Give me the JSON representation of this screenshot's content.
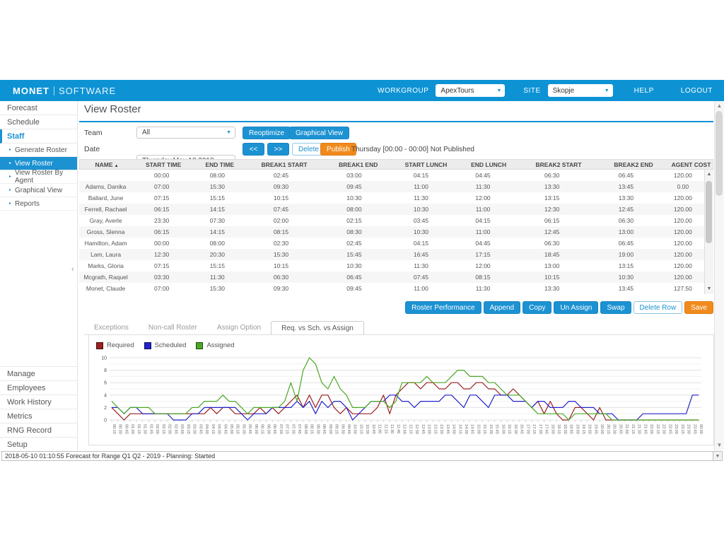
{
  "colors": {
    "brand_blue": "#0d93d4",
    "button_blue": "#1c92d2",
    "accent_orange": "#f18a1d",
    "required_line": "#9b2020",
    "scheduled_line": "#2323cc",
    "assigned_line": "#4aa823"
  },
  "header": {
    "logo_primary": "MONET",
    "logo_secondary": "SOFTWARE",
    "workgroup_label": "WORKGROUP",
    "workgroup_value": "ApexTours",
    "site_label": "SITE",
    "site_value": "Skopje",
    "help_label": "HELP",
    "logout_label": "LOGOUT"
  },
  "sidebar": {
    "items": [
      {
        "label": "Forecast",
        "type": "top",
        "group": "upper"
      },
      {
        "label": "Schedule",
        "type": "top",
        "group": "upper"
      },
      {
        "label": "Staff",
        "type": "section",
        "group": "upper"
      },
      {
        "label": "Generate Roster",
        "type": "sub",
        "group": "upper"
      },
      {
        "label": "View Roster",
        "type": "sub",
        "group": "upper",
        "active": true
      },
      {
        "label": "View Roster By Agent",
        "type": "sub",
        "group": "upper"
      },
      {
        "label": "Graphical View",
        "type": "sub",
        "group": "upper"
      },
      {
        "label": "Reports",
        "type": "sub",
        "group": "upper"
      },
      {
        "label": "Manage",
        "type": "top",
        "group": "lower"
      },
      {
        "label": "Employees",
        "type": "top",
        "group": "lower"
      },
      {
        "label": "Work History",
        "type": "top",
        "group": "lower"
      },
      {
        "label": "Metrics",
        "type": "top",
        "group": "lower"
      },
      {
        "label": "RNG Record",
        "type": "top",
        "group": "lower"
      },
      {
        "label": "Setup",
        "type": "top",
        "group": "lower"
      }
    ]
  },
  "main": {
    "title": "View Roster",
    "team_label": "Team",
    "team_value": "All",
    "date_label": "Date",
    "date_value": "Thursday,May 10,2018",
    "publish_status": "Thursday [00:00 - 00:00]  Not Published"
  },
  "toolbar": {
    "reoptimize_label": "Reoptimize",
    "graphical_view_label": "Graphical View",
    "prev_label": "<<",
    "next_label": ">>",
    "delete_label": "Delete",
    "publish_label": "Publish"
  },
  "roster_table": {
    "columns": [
      "NAME",
      "START TIME",
      "END TIME",
      "BREAK1 START",
      "BREAK1 END",
      "START LUNCH",
      "END LUNCH",
      "BREAK2 START",
      "BREAK2 END",
      "AGENT COST"
    ],
    "sorted_column": "NAME",
    "rows": [
      [
        "",
        "00:00",
        "08:00",
        "02:45",
        "03:00",
        "04:15",
        "04:45",
        "06:30",
        "06:45",
        "120.00"
      ],
      [
        "Adams, Danika",
        "07:00",
        "15:30",
        "09:30",
        "09:45",
        "11:00",
        "11:30",
        "13:30",
        "13:45",
        "0.00"
      ],
      [
        "Ballard, June",
        "07:15",
        "15:15",
        "10:15",
        "10:30",
        "11:30",
        "12:00",
        "13:15",
        "13:30",
        "120.00"
      ],
      [
        "Ferrell, Rachael",
        "06:15",
        "14:15",
        "07:45",
        "08:00",
        "10:30",
        "11:00",
        "12:30",
        "12:45",
        "120.00"
      ],
      [
        "Gray, Averle",
        "23:30",
        "07:30",
        "02:00",
        "02:15",
        "03:45",
        "04:15",
        "06:15",
        "06:30",
        "120.00"
      ],
      [
        "Gross, Slenna",
        "06:15",
        "14:15",
        "08:15",
        "08:30",
        "10:30",
        "11:00",
        "12:45",
        "13:00",
        "120.00"
      ],
      [
        "Hamilton, Adam",
        "00:00",
        "08:00",
        "02:30",
        "02:45",
        "04:15",
        "04:45",
        "06:30",
        "06:45",
        "120.00"
      ],
      [
        "Lam, Laura",
        "12:30",
        "20:30",
        "15:30",
        "15:45",
        "16:45",
        "17:15",
        "18:45",
        "19:00",
        "120.00"
      ],
      [
        "Marks, Gloria",
        "07:15",
        "15:15",
        "10:15",
        "10:30",
        "11:30",
        "12:00",
        "13:00",
        "13:15",
        "120.00"
      ],
      [
        "Mcgrath, Raquel",
        "03:30",
        "11:30",
        "06:30",
        "06:45",
        "07:45",
        "08:15",
        "10:15",
        "10:30",
        "120.00"
      ],
      [
        "Monet, Claude",
        "07:00",
        "15:30",
        "09:30",
        "09:45",
        "11:00",
        "11:30",
        "13:30",
        "13:45",
        "127.50"
      ]
    ]
  },
  "actions": [
    {
      "label": "Roster Performance",
      "variant": "primary"
    },
    {
      "label": "Append",
      "variant": "primary"
    },
    {
      "label": "Copy",
      "variant": "primary"
    },
    {
      "label": "Un Assign",
      "variant": "primary"
    },
    {
      "label": "Swap",
      "variant": "primary"
    },
    {
      "label": "Delete Row",
      "variant": "outline"
    },
    {
      "label": "Save",
      "variant": "accent"
    }
  ],
  "tabs": [
    {
      "label": "Exceptions",
      "active": false
    },
    {
      "label": "Non-call Roster",
      "active": false
    },
    {
      "label": "Assign Option",
      "active": false
    },
    {
      "label": "Req. vs Sch. vs Assign",
      "active": true
    }
  ],
  "chart_data": {
    "type": "line",
    "title": "",
    "xlabel": "",
    "ylabel": "",
    "ylim": [
      0,
      10
    ],
    "yticks": [
      0,
      2,
      4,
      6,
      8,
      10
    ],
    "grid": true,
    "legend_position": "top-left",
    "x": [
      "00:15",
      "00:30",
      "00:45",
      "01:00",
      "01:15",
      "01:30",
      "01:45",
      "02:00",
      "02:15",
      "02:30",
      "02:45",
      "03:00",
      "03:15",
      "03:30",
      "03:45",
      "04:00",
      "04:15",
      "04:30",
      "04:45",
      "05:00",
      "05:15",
      "05:30",
      "05:45",
      "06:00",
      "06:15",
      "06:30",
      "06:45",
      "07:00",
      "07:15",
      "07:30",
      "07:45",
      "08:00",
      "08:15",
      "08:30",
      "08:45",
      "09:00",
      "09:15",
      "09:30",
      "09:45",
      "10:00",
      "10:15",
      "10:30",
      "10:45",
      "11:00",
      "11:15",
      "11:30",
      "11:45",
      "12:00",
      "12:15",
      "12:30",
      "12:45",
      "13:00",
      "13:15",
      "13:30",
      "13:45",
      "14:00",
      "14:15",
      "14:30",
      "14:45",
      "15:00",
      "15:15",
      "15:30",
      "15:45",
      "16:00",
      "16:15",
      "16:30",
      "16:45",
      "17:00",
      "17:15",
      "17:30",
      "17:45",
      "18:00",
      "18:15",
      "18:30",
      "18:45",
      "19:00",
      "19:15",
      "19:30",
      "19:45",
      "20:00",
      "20:15",
      "20:30",
      "20:45",
      "21:00",
      "21:15",
      "21:30",
      "21:45",
      "22:00",
      "22:15",
      "22:30",
      "22:45",
      "23:00",
      "23:15",
      "23:30",
      "23:45",
      "00:00"
    ],
    "series": [
      {
        "name": "Required",
        "color": "#9b2020",
        "values": [
          2,
          1,
          0,
          1,
          1,
          1,
          1,
          1,
          1,
          1,
          1,
          1,
          1,
          1,
          1,
          1,
          2,
          1,
          2,
          2,
          1,
          1,
          1,
          1,
          2,
          1,
          2,
          1,
          2,
          3,
          4,
          2,
          4,
          2,
          4,
          4,
          2,
          1,
          2,
          1,
          1,
          1,
          1,
          2,
          4,
          1,
          4,
          5,
          6,
          6,
          5,
          6,
          6,
          5,
          5,
          6,
          6,
          5,
          5,
          6,
          6,
          5,
          5,
          4,
          4,
          5,
          4,
          3,
          2,
          3,
          1,
          3,
          1,
          0,
          0,
          2,
          2,
          1,
          0,
          2,
          0,
          0,
          0,
          0,
          0,
          0,
          0,
          0,
          0,
          0,
          0,
          0,
          0,
          0,
          0,
          0
        ]
      },
      {
        "name": "Scheduled",
        "color": "#2323cc",
        "values": [
          2,
          2,
          1,
          2,
          2,
          1,
          1,
          1,
          1,
          1,
          0,
          0,
          0,
          1,
          1,
          2,
          2,
          2,
          2,
          2,
          2,
          1,
          0,
          1,
          1,
          1,
          2,
          2,
          2,
          2,
          3,
          2,
          3,
          1,
          3,
          2,
          3,
          3,
          2,
          0,
          1,
          2,
          3,
          3,
          3,
          4,
          4,
          3,
          3,
          2,
          3,
          3,
          3,
          3,
          4,
          4,
          3,
          2,
          4,
          4,
          3,
          2,
          4,
          4,
          4,
          3,
          3,
          3,
          2,
          3,
          3,
          2,
          2,
          2,
          3,
          3,
          2,
          2,
          2,
          1,
          1,
          1,
          0,
          0,
          0,
          0,
          1,
          1,
          1,
          1,
          1,
          1,
          1,
          1,
          4,
          4
        ]
      },
      {
        "name": "Assigned",
        "color": "#4aa823",
        "values": [
          3,
          2,
          1,
          2,
          2,
          2,
          2,
          1,
          1,
          1,
          1,
          1,
          1,
          2,
          2,
          3,
          3,
          3,
          4,
          3,
          3,
          2,
          1,
          2,
          2,
          2,
          2,
          2,
          3,
          6,
          3,
          8,
          10,
          9,
          6,
          5,
          7,
          5,
          4,
          2,
          2,
          2,
          3,
          3,
          3,
          2,
          3,
          6,
          6,
          6,
          6,
          7,
          6,
          6,
          6,
          7,
          8,
          8,
          7,
          7,
          7,
          6,
          6,
          5,
          4,
          4,
          4,
          3,
          2,
          1,
          1,
          1,
          1,
          1,
          0,
          1,
          1,
          1,
          1,
          1,
          1,
          0,
          0,
          0,
          0,
          0,
          0,
          0,
          0,
          0,
          0,
          0,
          0,
          0,
          0,
          0
        ]
      }
    ]
  },
  "statusbar": {
    "text": "2018-05-10 01:10:55 Forecast for Range Q1 Q2 - 2019 - Planning: Started"
  }
}
